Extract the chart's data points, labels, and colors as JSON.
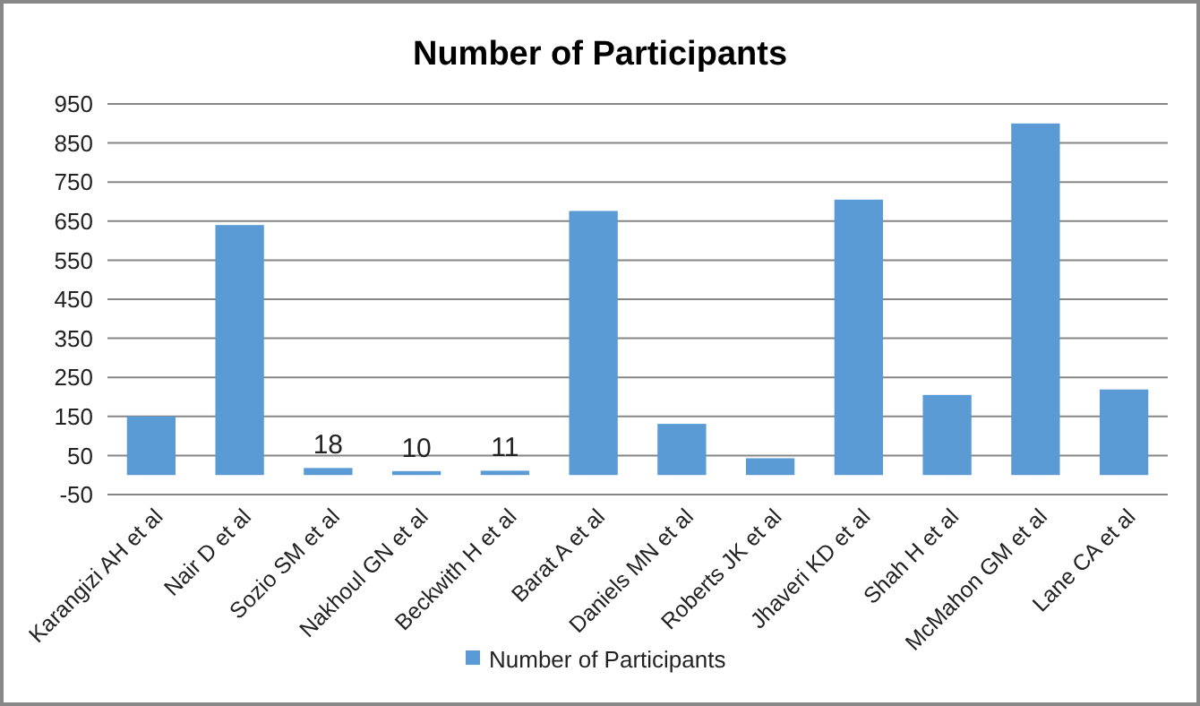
{
  "chart_data": {
    "type": "bar",
    "title": "Number of Participants",
    "categories": [
      "Karangizi AH et al",
      "Nair D et al",
      "Sozio SM et al",
      "Nakhoul GN et al",
      "Beckwith H et al",
      "Barat A et al",
      "Daniels MN et al",
      "Roberts JK et al",
      "Jhaveri KD et al",
      "Shah H et al",
      "McMahon GM et al",
      "Lane CA et al"
    ],
    "series": [
      {
        "name": "Number of Participants",
        "color": "#5b9bd5",
        "values": [
          150,
          640,
          18,
          10,
          11,
          676,
          131,
          43,
          705,
          205,
          900,
          219
        ],
        "value_labels": [
          null,
          null,
          "18",
          "10",
          "11",
          null,
          null,
          null,
          null,
          null,
          null,
          null
        ]
      }
    ],
    "ylim": [
      -50,
      950
    ],
    "yticks": [
      -50,
      50,
      150,
      250,
      350,
      450,
      550,
      650,
      750,
      850,
      950
    ],
    "grid": "y",
    "legend": "bottom"
  }
}
